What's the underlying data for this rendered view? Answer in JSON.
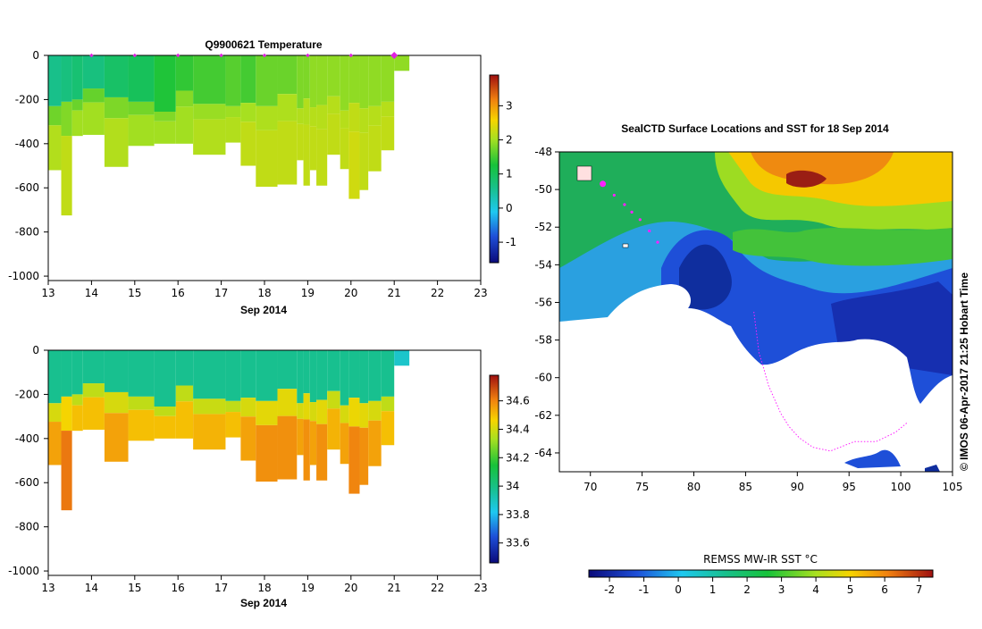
{
  "chart_data": [
    {
      "type": "heatmap",
      "title": "Q9900621  Temperature",
      "xlabel": "Sep 2014",
      "xlim": [
        13,
        23
      ],
      "ylim": [
        -1020,
        0
      ],
      "x_ticks": [
        "13",
        "14",
        "15",
        "16",
        "17",
        "18",
        "19",
        "20",
        "21",
        "22",
        "23"
      ],
      "y_ticks": [
        "0",
        "-200",
        "-400",
        "-600",
        "-800",
        "-1000"
      ],
      "colorbar": {
        "range": [
          -1.6,
          3.9
        ],
        "ticks": [
          "-1",
          "0",
          "1",
          "2",
          "3"
        ]
      },
      "surface_markers": [
        14.0,
        15.0,
        16.0,
        17.0,
        18.0,
        19.0,
        20.0,
        21.0
      ],
      "profiles": [
        {
          "x0": 13.0,
          "x1": 13.3,
          "thermocline": -230,
          "max_depth": -520,
          "surface_temp": 0.6,
          "deep_temp": 2.1
        },
        {
          "x0": 13.3,
          "x1": 13.55,
          "thermocline": -210,
          "max_depth": -725,
          "surface_temp": 0.7,
          "deep_temp": 2.2
        },
        {
          "x0": 13.55,
          "x1": 13.8,
          "thermocline": -200,
          "max_depth": -365,
          "surface_temp": 0.8,
          "deep_temp": 2.0
        },
        {
          "x0": 13.8,
          "x1": 14.3,
          "thermocline": -150,
          "max_depth": -360,
          "surface_temp": 0.7,
          "deep_temp": 2.0
        },
        {
          "x0": 14.3,
          "x1": 14.85,
          "thermocline": -190,
          "max_depth": -505,
          "surface_temp": 0.9,
          "deep_temp": 2.1
        },
        {
          "x0": 14.85,
          "x1": 15.45,
          "thermocline": -210,
          "max_depth": -410,
          "surface_temp": 1.0,
          "deep_temp": 2.0
        },
        {
          "x0": 15.45,
          "x1": 15.95,
          "thermocline": -255,
          "max_depth": -400,
          "surface_temp": 1.3,
          "deep_temp": 2.0
        },
        {
          "x0": 15.95,
          "x1": 16.35,
          "thermocline": -160,
          "max_depth": -400,
          "surface_temp": 1.4,
          "deep_temp": 2.0
        },
        {
          "x0": 16.35,
          "x1": 17.1,
          "thermocline": -220,
          "max_depth": -450,
          "surface_temp": 1.5,
          "deep_temp": 2.1
        },
        {
          "x0": 17.1,
          "x1": 17.45,
          "thermocline": -230,
          "max_depth": -395,
          "surface_temp": 1.6,
          "deep_temp": 2.1
        },
        {
          "x0": 17.45,
          "x1": 17.8,
          "thermocline": -215,
          "max_depth": -500,
          "surface_temp": 1.5,
          "deep_temp": 2.2
        },
        {
          "x0": 17.8,
          "x1": 18.3,
          "thermocline": -230,
          "max_depth": -595,
          "surface_temp": 1.7,
          "deep_temp": 2.2
        },
        {
          "x0": 18.3,
          "x1": 18.75,
          "thermocline": -175,
          "max_depth": -585,
          "surface_temp": 1.7,
          "deep_temp": 2.2
        },
        {
          "x0": 18.75,
          "x1": 18.9,
          "thermocline": -240,
          "max_depth": -475,
          "surface_temp": 1.8,
          "deep_temp": 2.2
        },
        {
          "x0": 18.9,
          "x1": 19.05,
          "thermocline": -195,
          "max_depth": -590,
          "surface_temp": 1.8,
          "deep_temp": 2.2
        },
        {
          "x0": 19.05,
          "x1": 19.2,
          "thermocline": -235,
          "max_depth": -520,
          "surface_temp": 1.9,
          "deep_temp": 2.2
        },
        {
          "x0": 19.2,
          "x1": 19.45,
          "thermocline": -225,
          "max_depth": -590,
          "surface_temp": 1.9,
          "deep_temp": 2.2
        },
        {
          "x0": 19.45,
          "x1": 19.75,
          "thermocline": -185,
          "max_depth": -450,
          "surface_temp": 1.9,
          "deep_temp": 2.2
        },
        {
          "x0": 19.75,
          "x1": 19.95,
          "thermocline": -250,
          "max_depth": -515,
          "surface_temp": 1.9,
          "deep_temp": 2.2
        },
        {
          "x0": 19.95,
          "x1": 20.2,
          "thermocline": -215,
          "max_depth": -650,
          "surface_temp": 1.9,
          "deep_temp": 2.3
        },
        {
          "x0": 20.2,
          "x1": 20.4,
          "thermocline": -240,
          "max_depth": -610,
          "surface_temp": 1.9,
          "deep_temp": 2.2
        },
        {
          "x0": 20.4,
          "x1": 20.7,
          "thermocline": -230,
          "max_depth": -525,
          "surface_temp": 1.9,
          "deep_temp": 2.2
        },
        {
          "x0": 20.7,
          "x1": 21.0,
          "thermocline": -210,
          "max_depth": -430,
          "surface_temp": 1.9,
          "deep_temp": 2.2
        },
        {
          "x0": 21.0,
          "x1": 21.35,
          "thermocline": -70,
          "max_depth": -70,
          "surface_temp": 1.9,
          "deep_temp": 1.9
        }
      ]
    },
    {
      "type": "heatmap",
      "title": "",
      "xlabel": "Sep 2014",
      "xlim": [
        13,
        23
      ],
      "ylim": [
        -1020,
        0
      ],
      "x_ticks": [
        "13",
        "14",
        "15",
        "16",
        "17",
        "18",
        "19",
        "20",
        "21",
        "22",
        "23"
      ],
      "y_ticks": [
        "0",
        "-200",
        "-400",
        "-600",
        "-800",
        "-1000"
      ],
      "colorbar": {
        "range": [
          33.46,
          34.78
        ],
        "ticks": [
          "33.6",
          "33.8",
          "34",
          "34.2",
          "34.4",
          "34.6"
        ]
      },
      "profiles": [
        {
          "x0": 13.0,
          "x1": 13.3,
          "thermocline": -240,
          "max_depth": -520,
          "surface_value": 33.98,
          "deep_value": 34.55
        },
        {
          "x0": 13.3,
          "x1": 13.55,
          "thermocline": -210,
          "max_depth": -725,
          "surface_value": 33.98,
          "deep_value": 34.62
        },
        {
          "x0": 13.55,
          "x1": 13.8,
          "thermocline": -200,
          "max_depth": -365,
          "surface_value": 33.98,
          "deep_value": 34.5
        },
        {
          "x0": 13.8,
          "x1": 14.3,
          "thermocline": -150,
          "max_depth": -360,
          "surface_value": 33.98,
          "deep_value": 34.5
        },
        {
          "x0": 14.3,
          "x1": 14.85,
          "thermocline": -190,
          "max_depth": -505,
          "surface_value": 33.98,
          "deep_value": 34.55
        },
        {
          "x0": 14.85,
          "x1": 15.45,
          "thermocline": -210,
          "max_depth": -410,
          "surface_value": 33.98,
          "deep_value": 34.5
        },
        {
          "x0": 15.45,
          "x1": 15.95,
          "thermocline": -255,
          "max_depth": -400,
          "surface_value": 33.98,
          "deep_value": 34.5
        },
        {
          "x0": 15.95,
          "x1": 16.35,
          "thermocline": -160,
          "max_depth": -400,
          "surface_value": 33.98,
          "deep_value": 34.5
        },
        {
          "x0": 16.35,
          "x1": 17.1,
          "thermocline": -220,
          "max_depth": -450,
          "surface_value": 33.98,
          "deep_value": 34.52
        },
        {
          "x0": 17.1,
          "x1": 17.45,
          "thermocline": -230,
          "max_depth": -395,
          "surface_value": 33.98,
          "deep_value": 34.5
        },
        {
          "x0": 17.45,
          "x1": 17.8,
          "thermocline": -215,
          "max_depth": -500,
          "surface_value": 33.98,
          "deep_value": 34.55
        },
        {
          "x0": 17.8,
          "x1": 18.3,
          "thermocline": -230,
          "max_depth": -595,
          "surface_value": 33.98,
          "deep_value": 34.58
        },
        {
          "x0": 18.3,
          "x1": 18.75,
          "thermocline": -175,
          "max_depth": -585,
          "surface_value": 33.98,
          "deep_value": 34.58
        },
        {
          "x0": 18.75,
          "x1": 18.9,
          "thermocline": -240,
          "max_depth": -475,
          "surface_value": 33.98,
          "deep_value": 34.55
        },
        {
          "x0": 18.9,
          "x1": 19.05,
          "thermocline": -195,
          "max_depth": -590,
          "surface_value": 33.98,
          "deep_value": 34.58
        },
        {
          "x0": 19.05,
          "x1": 19.2,
          "thermocline": -235,
          "max_depth": -520,
          "surface_value": 33.98,
          "deep_value": 34.55
        },
        {
          "x0": 19.2,
          "x1": 19.45,
          "thermocline": -225,
          "max_depth": -590,
          "surface_value": 33.98,
          "deep_value": 34.58
        },
        {
          "x0": 19.45,
          "x1": 19.75,
          "thermocline": -185,
          "max_depth": -450,
          "surface_value": 33.98,
          "deep_value": 34.52
        },
        {
          "x0": 19.75,
          "x1": 19.95,
          "thermocline": -250,
          "max_depth": -515,
          "surface_value": 33.98,
          "deep_value": 34.55
        },
        {
          "x0": 19.95,
          "x1": 20.2,
          "thermocline": -215,
          "max_depth": -650,
          "surface_value": 33.98,
          "deep_value": 34.6
        },
        {
          "x0": 20.2,
          "x1": 20.4,
          "thermocline": -240,
          "max_depth": -610,
          "surface_value": 33.98,
          "deep_value": 34.58
        },
        {
          "x0": 20.4,
          "x1": 20.7,
          "thermocline": -230,
          "max_depth": -525,
          "surface_value": 33.98,
          "deep_value": 34.55
        },
        {
          "x0": 20.7,
          "x1": 21.0,
          "thermocline": -210,
          "max_depth": -430,
          "surface_value": 33.98,
          "deep_value": 34.5
        },
        {
          "x0": 21.0,
          "x1": 21.35,
          "thermocline": -70,
          "max_depth": -70,
          "surface_value": 33.88,
          "deep_value": 33.88
        }
      ]
    },
    {
      "type": "heatmap",
      "title": "SealCTD Surface Locations and SST for 18 Sep 2014",
      "xlim": [
        67,
        105
      ],
      "ylim": [
        -65,
        -48
      ],
      "x_ticks": [
        "70",
        "75",
        "80",
        "85",
        "90",
        "95",
        "100",
        "105"
      ],
      "y_ticks": [
        "-48",
        "-50",
        "-52",
        "-54",
        "-56",
        "-58",
        "-60",
        "-62",
        "-64"
      ],
      "colorbar": {
        "label": "REMSS MW-IR SST °C",
        "range": [
          -2.6,
          7.4
        ],
        "ticks": [
          "-2",
          "-1",
          "0",
          "1",
          "2",
          "3",
          "4",
          "5",
          "6",
          "7"
        ]
      },
      "credit": "©  IMOS 06-Apr-2017 21:25 Hobart Time",
      "seal_track": [
        [
          71.2,
          -49.7
        ],
        [
          72.3,
          -50.3
        ],
        [
          73.3,
          -50.8
        ],
        [
          74.0,
          -51.2
        ],
        [
          74.8,
          -51.6
        ],
        [
          75.7,
          -52.2
        ],
        [
          76.5,
          -52.8
        ]
      ],
      "ice_edge_track": [
        [
          85.8,
          -56.5
        ],
        [
          86.3,
          -58.7
        ],
        [
          86.7,
          -59.4
        ],
        [
          87.2,
          -60.4
        ],
        [
          88.4,
          -61.9
        ],
        [
          89.2,
          -62.6
        ],
        [
          90.2,
          -63.2
        ],
        [
          91.5,
          -63.7
        ],
        [
          93.2,
          -63.9
        ],
        [
          95.5,
          -63.4
        ],
        [
          97.6,
          -63.4
        ],
        [
          99.5,
          -62.9
        ],
        [
          100.6,
          -62.4
        ]
      ]
    }
  ]
}
